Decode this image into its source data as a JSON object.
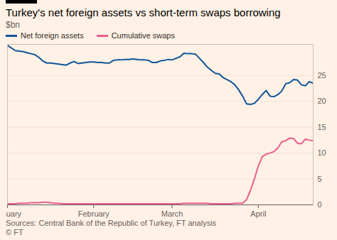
{
  "chart_data": {
    "type": "line",
    "title": "Turkey's net foreign assets vs short-term swaps borrowing",
    "subtitle": "$bn",
    "caption": "Sources: Central Bank of the Republic of Turkey, FT analysis",
    "credit": "© FT",
    "categories": [
      "January",
      null,
      null,
      null,
      null,
      null,
      null,
      null,
      null,
      null,
      null,
      null,
      null,
      null,
      null,
      null,
      null,
      null,
      null,
      null,
      null,
      null,
      "February",
      null,
      null,
      null,
      null,
      null,
      null,
      null,
      null,
      null,
      null,
      null,
      null,
      null,
      null,
      null,
      null,
      null,
      null,
      null,
      "March",
      null,
      null,
      null,
      null,
      null,
      null,
      null,
      null,
      null,
      null,
      null,
      null,
      null,
      null,
      null,
      null,
      null,
      null,
      null,
      null,
      null,
      "April",
      null,
      null,
      null,
      null,
      null,
      null,
      null,
      null,
      null,
      null,
      null,
      null,
      null,
      null
    ],
    "series": [
      {
        "name": "Net foreign assets",
        "color": "#0f5499",
        "values": [
          30.8,
          30.3,
          29.8,
          29.7,
          29.6,
          29.4,
          29.2,
          29.0,
          28.5,
          27.8,
          27.4,
          27.4,
          27.3,
          27.2,
          27.1,
          27.0,
          27.4,
          27.7,
          27.3,
          27.4,
          27.5,
          27.6,
          27.6,
          27.5,
          27.5,
          27.4,
          27.4,
          27.9,
          28.0,
          28.0,
          28.1,
          28.1,
          28.2,
          28.1,
          28.0,
          28.0,
          27.9,
          27.5,
          27.5,
          27.8,
          27.9,
          28.1,
          28.0,
          28.3,
          28.6,
          29.3,
          29.2,
          29.2,
          29.1,
          28.3,
          27.5,
          26.6,
          26.0,
          25.4,
          25.3,
          24.6,
          24.2,
          23.8,
          23.2,
          22.2,
          21.0,
          19.5,
          19.4,
          19.6,
          20.4,
          21.3,
          22.1,
          21.0,
          20.9,
          21.3,
          22.0,
          23.4,
          23.6,
          24.2,
          24.1,
          23.2,
          23.0,
          23.8,
          23.5
        ]
      },
      {
        "name": "Cumulative swaps",
        "color": "#eb5e8d",
        "values": [
          0.2,
          0.2,
          0.2,
          0.3,
          0.3,
          0.3,
          0.4,
          0.4,
          0.4,
          0.5,
          0.5,
          0.4,
          0.3,
          0.3,
          0.2,
          0.2,
          0.2,
          0.2,
          0.2,
          0.2,
          0.2,
          0.2,
          0.2,
          0.2,
          0.2,
          0.2,
          0.2,
          0.2,
          0.2,
          0.2,
          0.2,
          0.2,
          0.2,
          0.2,
          0.2,
          0.2,
          0.2,
          0.2,
          0.2,
          0.2,
          0.2,
          0.2,
          0.2,
          0.2,
          0.2,
          0.3,
          0.3,
          0.3,
          0.3,
          0.3,
          0.3,
          0.3,
          0.2,
          0.2,
          0.2,
          0.2,
          0.2,
          0.2,
          0.3,
          0.3,
          0.3,
          1.0,
          2.8,
          5.0,
          7.5,
          9.3,
          9.8,
          10.0,
          10.3,
          11.0,
          12.2,
          12.4,
          12.9,
          12.8,
          11.9,
          11.8,
          12.7,
          12.5,
          12.4
        ]
      }
    ],
    "ylim": [
      0,
      31
    ],
    "yticks": [
      0,
      5,
      10,
      15,
      20,
      25
    ],
    "grid": true,
    "legend": "top-left"
  }
}
